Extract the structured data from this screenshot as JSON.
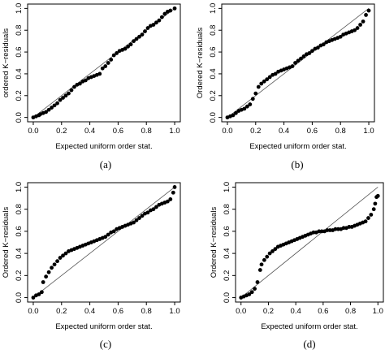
{
  "chart_data": [
    {
      "type": "scatter",
      "caption": "(a)",
      "xlabel": "Expected uniform order stat.",
      "ylabel": "ordered K−residuals",
      "xlim": [
        0,
        1
      ],
      "ylim": [
        0,
        1
      ],
      "xticks": [
        "0.0",
        "0.2",
        "0.4",
        "0.6",
        "0.8",
        "1.0"
      ],
      "yticks": [
        "0.0",
        "0.2",
        "0.4",
        "0.6",
        "0.8",
        "1.0"
      ],
      "reference_line": "y = x",
      "points": [
        [
          0.0,
          0.0
        ],
        [
          0.02,
          0.01
        ],
        [
          0.04,
          0.02
        ],
        [
          0.05,
          0.03
        ],
        [
          0.07,
          0.04
        ],
        [
          0.09,
          0.05
        ],
        [
          0.11,
          0.07
        ],
        [
          0.13,
          0.09
        ],
        [
          0.15,
          0.11
        ],
        [
          0.17,
          0.13
        ],
        [
          0.19,
          0.16
        ],
        [
          0.21,
          0.18
        ],
        [
          0.23,
          0.2
        ],
        [
          0.25,
          0.22
        ],
        [
          0.27,
          0.25
        ],
        [
          0.29,
          0.28
        ],
        [
          0.31,
          0.3
        ],
        [
          0.33,
          0.31
        ],
        [
          0.35,
          0.33
        ],
        [
          0.37,
          0.34
        ],
        [
          0.39,
          0.36
        ],
        [
          0.41,
          0.37
        ],
        [
          0.43,
          0.38
        ],
        [
          0.45,
          0.39
        ],
        [
          0.47,
          0.4
        ],
        [
          0.49,
          0.45
        ],
        [
          0.51,
          0.47
        ],
        [
          0.53,
          0.5
        ],
        [
          0.55,
          0.53
        ],
        [
          0.57,
          0.57
        ],
        [
          0.59,
          0.59
        ],
        [
          0.61,
          0.61
        ],
        [
          0.63,
          0.62
        ],
        [
          0.65,
          0.63
        ],
        [
          0.67,
          0.65
        ],
        [
          0.69,
          0.67
        ],
        [
          0.71,
          0.7
        ],
        [
          0.73,
          0.72
        ],
        [
          0.75,
          0.74
        ],
        [
          0.77,
          0.76
        ],
        [
          0.79,
          0.79
        ],
        [
          0.81,
          0.82
        ],
        [
          0.83,
          0.84
        ],
        [
          0.85,
          0.85
        ],
        [
          0.87,
          0.87
        ],
        [
          0.89,
          0.89
        ],
        [
          0.91,
          0.92
        ],
        [
          0.93,
          0.95
        ],
        [
          0.95,
          0.97
        ],
        [
          0.97,
          0.98
        ],
        [
          1.0,
          1.0
        ]
      ]
    },
    {
      "type": "scatter",
      "caption": "(b)",
      "xlabel": "Expected uniform order stat.",
      "ylabel": "Ordered K−residuals",
      "xlim": [
        0,
        1
      ],
      "ylim": [
        0,
        1
      ],
      "xticks": [
        "0.0",
        "0.2",
        "0.4",
        "0.6",
        "0.8",
        "1.0"
      ],
      "yticks": [
        "0.0",
        "0.2",
        "0.4",
        "0.6",
        "0.8",
        "1.0"
      ],
      "reference_line": "y = x",
      "points": [
        [
          0.0,
          0.0
        ],
        [
          0.02,
          0.01
        ],
        [
          0.04,
          0.02
        ],
        [
          0.06,
          0.04
        ],
        [
          0.08,
          0.06
        ],
        [
          0.1,
          0.07
        ],
        [
          0.12,
          0.08
        ],
        [
          0.14,
          0.1
        ],
        [
          0.16,
          0.12
        ],
        [
          0.18,
          0.17
        ],
        [
          0.2,
          0.22
        ],
        [
          0.22,
          0.28
        ],
        [
          0.24,
          0.31
        ],
        [
          0.26,
          0.33
        ],
        [
          0.28,
          0.35
        ],
        [
          0.3,
          0.37
        ],
        [
          0.32,
          0.39
        ],
        [
          0.34,
          0.4
        ],
        [
          0.36,
          0.42
        ],
        [
          0.38,
          0.43
        ],
        [
          0.4,
          0.44
        ],
        [
          0.42,
          0.45
        ],
        [
          0.44,
          0.46
        ],
        [
          0.46,
          0.47
        ],
        [
          0.48,
          0.5
        ],
        [
          0.5,
          0.52
        ],
        [
          0.52,
          0.54
        ],
        [
          0.54,
          0.56
        ],
        [
          0.56,
          0.58
        ],
        [
          0.58,
          0.59
        ],
        [
          0.6,
          0.61
        ],
        [
          0.62,
          0.63
        ],
        [
          0.64,
          0.64
        ],
        [
          0.66,
          0.66
        ],
        [
          0.68,
          0.67
        ],
        [
          0.7,
          0.69
        ],
        [
          0.72,
          0.7
        ],
        [
          0.74,
          0.71
        ],
        [
          0.76,
          0.72
        ],
        [
          0.78,
          0.73
        ],
        [
          0.8,
          0.74
        ],
        [
          0.82,
          0.76
        ],
        [
          0.84,
          0.77
        ],
        [
          0.86,
          0.78
        ],
        [
          0.88,
          0.79
        ],
        [
          0.9,
          0.8
        ],
        [
          0.92,
          0.82
        ],
        [
          0.94,
          0.85
        ],
        [
          0.96,
          0.88
        ],
        [
          0.98,
          0.94
        ],
        [
          1.0,
          0.98
        ]
      ]
    },
    {
      "type": "scatter",
      "caption": "(c)",
      "xlabel": "Expected uniform order stat.",
      "ylabel": "Ordered K−residuals",
      "xlim": [
        0,
        1
      ],
      "ylim": [
        0,
        1
      ],
      "xticks": [
        "0.0",
        "0.2",
        "0.4",
        "0.6",
        "0.8",
        "1.0"
      ],
      "yticks": [
        "0.0",
        "0.2",
        "0.4",
        "0.6",
        "0.8",
        "1.0"
      ],
      "reference_line": "y = x",
      "points": [
        [
          0.0,
          0.0
        ],
        [
          0.02,
          0.02
        ],
        [
          0.04,
          0.03
        ],
        [
          0.06,
          0.05
        ],
        [
          0.07,
          0.14
        ],
        [
          0.09,
          0.19
        ],
        [
          0.11,
          0.23
        ],
        [
          0.13,
          0.27
        ],
        [
          0.15,
          0.3
        ],
        [
          0.17,
          0.33
        ],
        [
          0.19,
          0.36
        ],
        [
          0.21,
          0.38
        ],
        [
          0.23,
          0.4
        ],
        [
          0.25,
          0.42
        ],
        [
          0.27,
          0.43
        ],
        [
          0.29,
          0.44
        ],
        [
          0.31,
          0.45
        ],
        [
          0.33,
          0.46
        ],
        [
          0.35,
          0.47
        ],
        [
          0.37,
          0.48
        ],
        [
          0.39,
          0.49
        ],
        [
          0.41,
          0.5
        ],
        [
          0.43,
          0.51
        ],
        [
          0.45,
          0.52
        ],
        [
          0.47,
          0.53
        ],
        [
          0.49,
          0.54
        ],
        [
          0.51,
          0.55
        ],
        [
          0.53,
          0.57
        ],
        [
          0.55,
          0.59
        ],
        [
          0.57,
          0.6
        ],
        [
          0.59,
          0.62
        ],
        [
          0.61,
          0.63
        ],
        [
          0.63,
          0.64
        ],
        [
          0.65,
          0.65
        ],
        [
          0.67,
          0.66
        ],
        [
          0.69,
          0.67
        ],
        [
          0.71,
          0.68
        ],
        [
          0.73,
          0.7
        ],
        [
          0.75,
          0.72
        ],
        [
          0.77,
          0.74
        ],
        [
          0.79,
          0.76
        ],
        [
          0.81,
          0.77
        ],
        [
          0.83,
          0.79
        ],
        [
          0.85,
          0.8
        ],
        [
          0.87,
          0.82
        ],
        [
          0.89,
          0.84
        ],
        [
          0.91,
          0.85
        ],
        [
          0.93,
          0.86
        ],
        [
          0.95,
          0.87
        ],
        [
          0.97,
          0.89
        ],
        [
          0.99,
          0.95
        ],
        [
          1.0,
          1.0
        ]
      ]
    },
    {
      "type": "scatter",
      "caption": "(d)",
      "xlabel": "Expected uniform order stat.",
      "ylabel": "Ordered K−residuals",
      "xlim": [
        0,
        1
      ],
      "ylim": [
        0,
        1
      ],
      "xticks": [
        "0.0",
        "0.2",
        "0.4",
        "0.6",
        "0.8",
        "1.0"
      ],
      "yticks": [
        "0.0",
        "0.2",
        "0.4",
        "0.6",
        "0.8",
        "1.0"
      ],
      "reference_line": "y = x",
      "points": [
        [
          0.0,
          0.0
        ],
        [
          0.02,
          0.01
        ],
        [
          0.04,
          0.02
        ],
        [
          0.06,
          0.03
        ],
        [
          0.08,
          0.05
        ],
        [
          0.1,
          0.08
        ],
        [
          0.12,
          0.14
        ],
        [
          0.14,
          0.25
        ],
        [
          0.15,
          0.3
        ],
        [
          0.17,
          0.34
        ],
        [
          0.19,
          0.37
        ],
        [
          0.21,
          0.4
        ],
        [
          0.23,
          0.42
        ],
        [
          0.25,
          0.44
        ],
        [
          0.27,
          0.46
        ],
        [
          0.29,
          0.47
        ],
        [
          0.31,
          0.48
        ],
        [
          0.33,
          0.49
        ],
        [
          0.35,
          0.5
        ],
        [
          0.37,
          0.51
        ],
        [
          0.39,
          0.52
        ],
        [
          0.41,
          0.53
        ],
        [
          0.43,
          0.54
        ],
        [
          0.45,
          0.55
        ],
        [
          0.47,
          0.56
        ],
        [
          0.49,
          0.57
        ],
        [
          0.51,
          0.58
        ],
        [
          0.53,
          0.59
        ],
        [
          0.55,
          0.59
        ],
        [
          0.57,
          0.6
        ],
        [
          0.59,
          0.6
        ],
        [
          0.61,
          0.6
        ],
        [
          0.63,
          0.61
        ],
        [
          0.65,
          0.61
        ],
        [
          0.67,
          0.61
        ],
        [
          0.69,
          0.62
        ],
        [
          0.71,
          0.62
        ],
        [
          0.73,
          0.62
        ],
        [
          0.75,
          0.63
        ],
        [
          0.77,
          0.63
        ],
        [
          0.79,
          0.64
        ],
        [
          0.81,
          0.64
        ],
        [
          0.83,
          0.65
        ],
        [
          0.85,
          0.66
        ],
        [
          0.87,
          0.67
        ],
        [
          0.89,
          0.68
        ],
        [
          0.91,
          0.69
        ],
        [
          0.93,
          0.72
        ],
        [
          0.95,
          0.75
        ],
        [
          0.97,
          0.8
        ],
        [
          0.98,
          0.85
        ],
        [
          0.99,
          0.91
        ],
        [
          1.0,
          0.92
        ]
      ]
    }
  ]
}
